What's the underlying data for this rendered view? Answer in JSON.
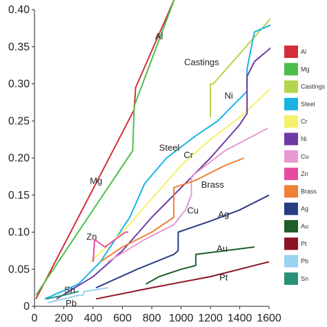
{
  "chart_data": {
    "type": "line",
    "xlim": [
      0,
      1600
    ],
    "ylim": [
      0,
      0.4
    ],
    "x_ticks": [
      "0",
      "200",
      "400",
      "600",
      "800",
      "1000",
      "1200",
      "1400",
      "1600"
    ],
    "y_ticks": [
      "0",
      "0.05",
      "0.10",
      "0.15",
      "0.20",
      "0.25",
      "0.30",
      "0.35",
      "0.40"
    ],
    "grid": false,
    "legend_position": "right",
    "series": [
      {
        "name": "Al",
        "color": "#d42e3a",
        "x": [
          10,
          680,
          690,
          1100
        ],
        "y": [
          0.01,
          0.265,
          0.295,
          0.48
        ]
      },
      {
        "name": "Mg",
        "color": "#4bbf4a",
        "x": [
          10,
          670,
          680,
          1080
        ],
        "y": [
          0.015,
          0.21,
          0.27,
          0.48
        ]
      },
      {
        "name": "Castings",
        "color": "#b3d44b",
        "x": [
          1200,
          1200,
          1220,
          1620
        ],
        "y": [
          0.255,
          0.3,
          0.3,
          0.39
        ]
      },
      {
        "name": "Steel",
        "color": "#17b3e3",
        "x": [
          70,
          300,
          450,
          550,
          650,
          750,
          900,
          1000,
          1100,
          1250,
          1450,
          1450,
          1500,
          1620
        ],
        "y": [
          0.01,
          0.03,
          0.06,
          0.09,
          0.12,
          0.165,
          0.2,
          0.215,
          0.23,
          0.25,
          0.29,
          0.32,
          0.37,
          0.38
        ]
      },
      {
        "name": "Cr",
        "color": "#f4f16a",
        "x": [
          380,
          600,
          800,
          1000,
          1200,
          1400,
          1620
        ],
        "y": [
          0.06,
          0.1,
          0.145,
          0.19,
          0.225,
          0.255,
          0.295
        ]
      },
      {
        "name": "Ni",
        "color": "#6e3aa3",
        "x": [
          150,
          400,
          600,
          800,
          1000,
          1200,
          1400,
          1450,
          1450,
          1500,
          1620
        ],
        "y": [
          0.01,
          0.04,
          0.075,
          0.12,
          0.16,
          0.2,
          0.245,
          0.26,
          0.31,
          0.33,
          0.35
        ]
      },
      {
        "name": "Cu",
        "color": "#e69ad0",
        "x": [
          500,
          750,
          950,
          1030,
          1070,
          1070,
          1300,
          1590
        ],
        "y": [
          0.06,
          0.09,
          0.11,
          0.13,
          0.15,
          0.175,
          0.21,
          0.24
        ]
      },
      {
        "name": "Zn",
        "color": "#e64ba0",
        "x": [
          400,
          410,
          480,
          620,
          640
        ],
        "y": [
          0.06,
          0.09,
          0.08,
          0.1,
          0.1
        ]
      },
      {
        "name": "Brass",
        "color": "#ee8135",
        "x": [
          450,
          600,
          800,
          950,
          950,
          1100,
          1200,
          1300,
          1430
        ],
        "y": [
          0.06,
          0.08,
          0.1,
          0.12,
          0.16,
          0.17,
          0.18,
          0.19,
          0.2
        ]
      },
      {
        "name": "Ag",
        "color": "#283c82",
        "x": [
          420,
          700,
          950,
          980,
          980,
          1200,
          1400,
          1600
        ],
        "y": [
          0.025,
          0.05,
          0.07,
          0.075,
          0.1,
          0.115,
          0.13,
          0.15
        ]
      },
      {
        "name": "Au",
        "color": "#1f5e2a",
        "x": [
          760,
          850,
          1000,
          1100,
          1100,
          1300,
          1500
        ],
        "y": [
          0.03,
          0.04,
          0.05,
          0.055,
          0.07,
          0.075,
          0.08
        ]
      },
      {
        "name": "Pt",
        "color": "#8b1524",
        "x": [
          420,
          800,
          1200,
          1600
        ],
        "y": [
          0.01,
          0.025,
          0.04,
          0.06
        ]
      },
      {
        "name": "Pb",
        "color": "#98d3f2",
        "x": [
          90,
          200,
          300,
          330,
          340,
          500
        ],
        "y": [
          0.005,
          0.01,
          0.015,
          0.015,
          0.02,
          0.025
        ]
      },
      {
        "name": "Sn",
        "color": "#299176",
        "x": [
          80,
          200,
          300
        ],
        "y": [
          0.01,
          0.015,
          0.02
        ]
      }
    ],
    "annotations": [
      {
        "text": "Al",
        "x": 850,
        "y": 0.36
      },
      {
        "text": "Mg",
        "x": 420,
        "y": 0.165
      },
      {
        "text": "Castings",
        "x": 1140,
        "y": 0.325
      },
      {
        "text": "Ni",
        "x": 1325,
        "y": 0.28
      },
      {
        "text": "Steel",
        "x": 920,
        "y": 0.21
      },
      {
        "text": "Cr",
        "x": 1050,
        "y": 0.2
      },
      {
        "text": "Brass",
        "x": 1215,
        "y": 0.16
      },
      {
        "text": "Zn",
        "x": 390,
        "y": 0.09
      },
      {
        "text": "Cu",
        "x": 1080,
        "y": 0.125
      },
      {
        "text": "Ag",
        "x": 1290,
        "y": 0.12
      },
      {
        "text": "Au",
        "x": 1280,
        "y": 0.074
      },
      {
        "text": "Sn",
        "x": 240,
        "y": 0.018
      },
      {
        "text": "Pt",
        "x": 1290,
        "y": 0.035
      },
      {
        "text": "Pb",
        "x": 250,
        "y": 0.0
      }
    ]
  }
}
